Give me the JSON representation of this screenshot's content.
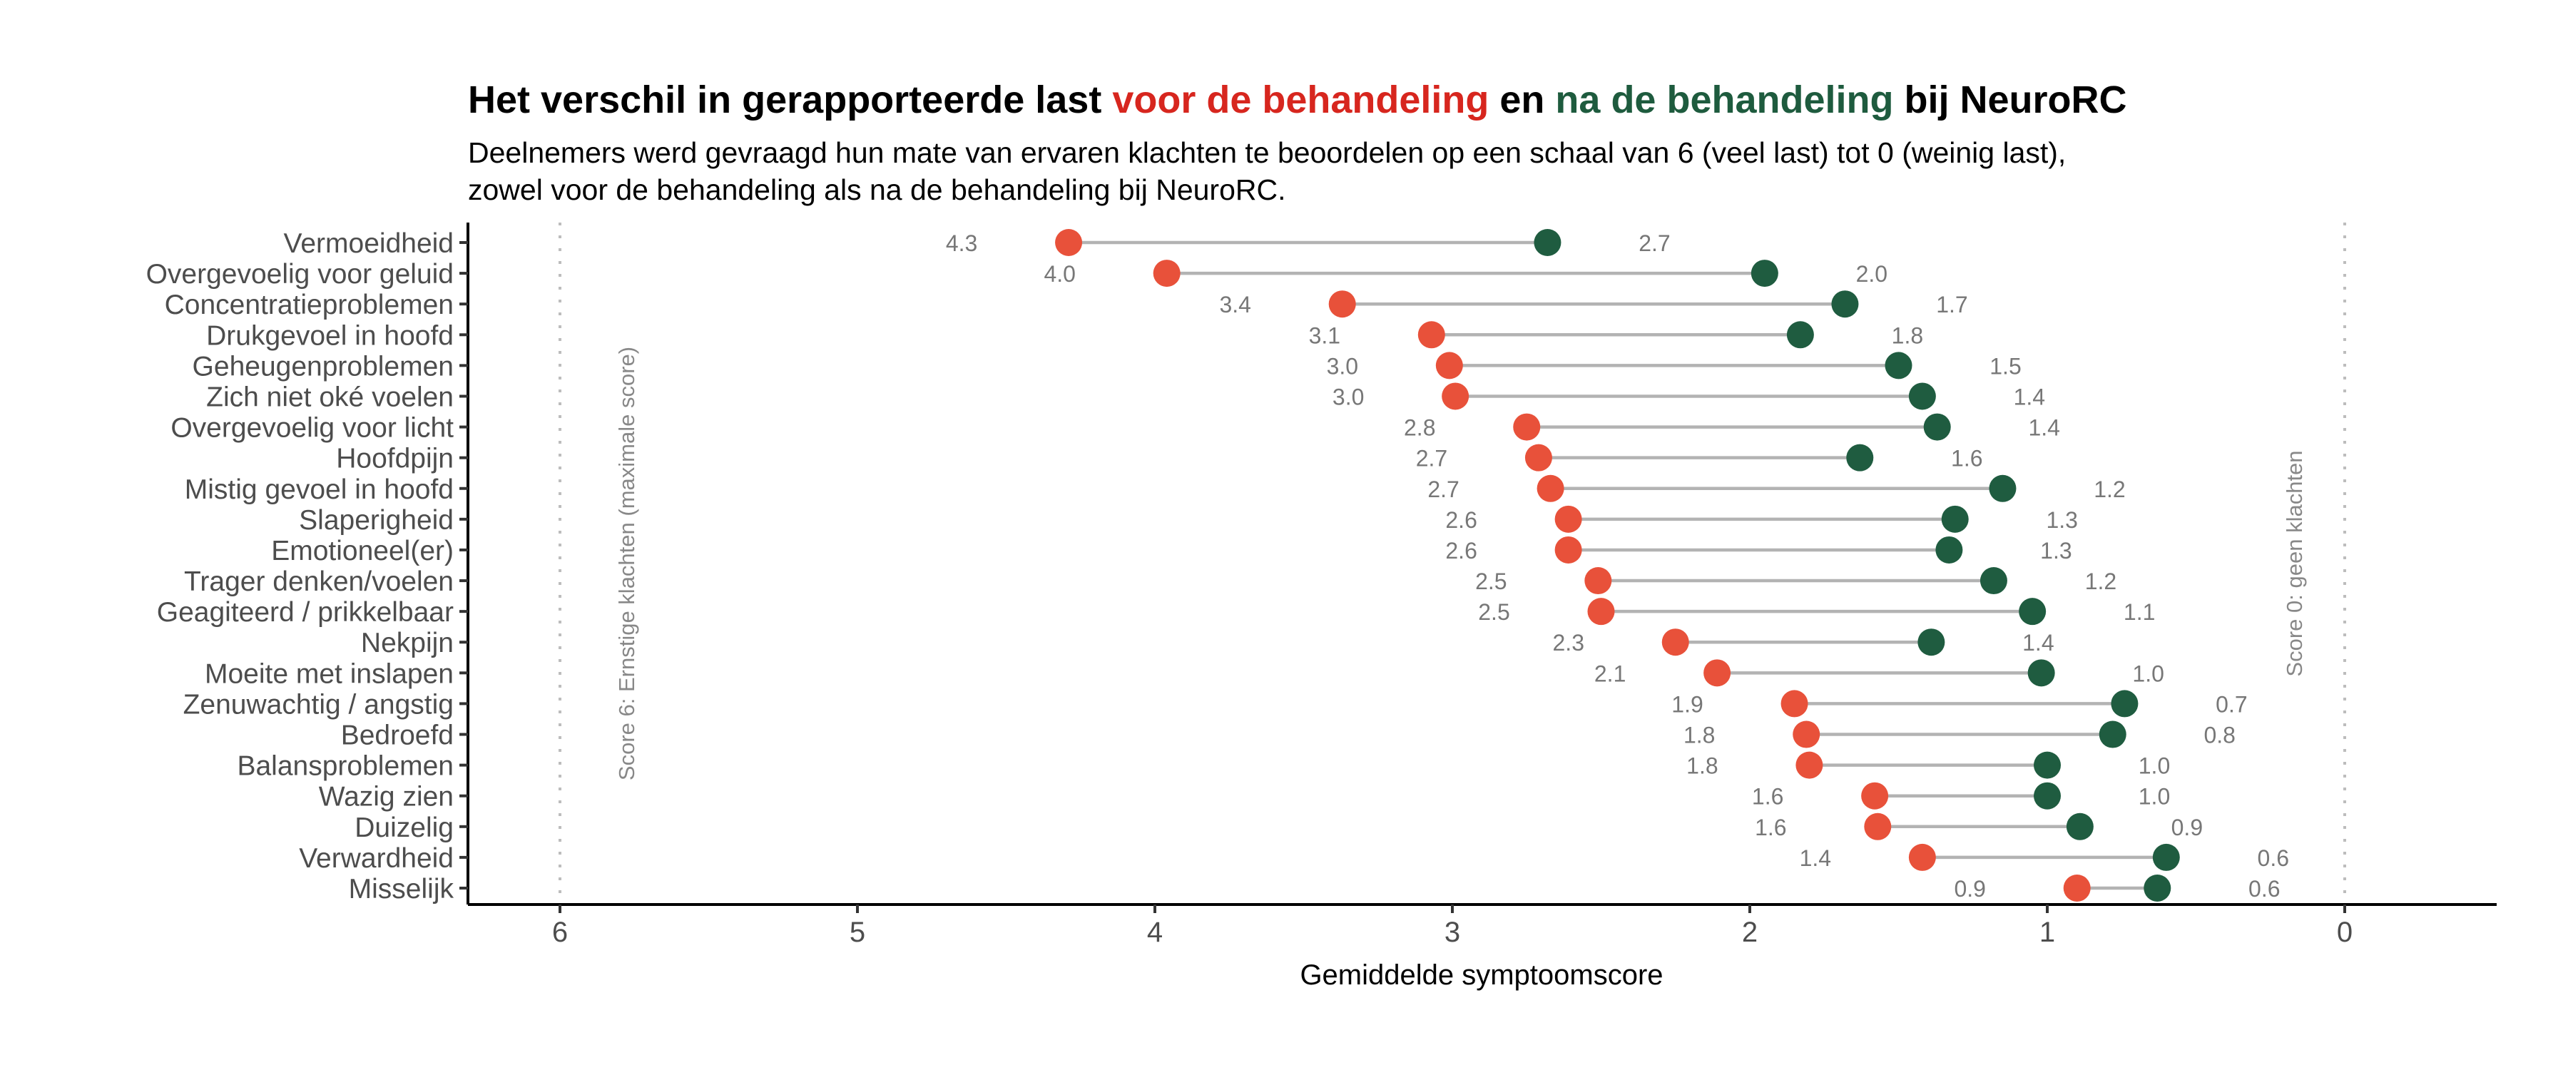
{
  "chart_data": {
    "type": "dumbbell",
    "title_parts": [
      "Het verschil in gerapporteerde last ",
      "voor de behandeling",
      " en ",
      "na de behandeling",
      " bij NeuroRC"
    ],
    "subtitle_lines": [
      "Deelnemers werd gevraagd hun mate van ervaren klachten te beoordelen op een schaal van 6 (veel last) tot 0 (weinig last),",
      "zowel voor de behandeling als na de behandeling bij NeuroRC."
    ],
    "xlabel": "Gemiddelde symptoomscore",
    "xlim": [
      6.31,
      -0.5
    ],
    "x_reversed": true,
    "xticks": [
      6,
      5,
      4,
      3,
      2,
      1,
      0
    ],
    "xtick_labels": [
      "6",
      "5",
      "4",
      "3",
      "2",
      "1",
      "0"
    ],
    "reference_lines": [
      {
        "x": 6,
        "label": "Score 6: Ernstige klachten (maximale score)"
      },
      {
        "x": 0,
        "label": "Score 0: geen klachten"
      }
    ],
    "colors": {
      "before": "#E8513A",
      "after": "#1F5C40",
      "title_before": "#D7261E",
      "title_after": "#1E5B3E",
      "segment": "#B3B3B3"
    },
    "categories": [
      "Vermoeidheid",
      "Overgevoelig voor geluid",
      "Concentratieproblemen",
      "Drukgevoel in hoofd",
      "Geheugenproblemen",
      "Zich niet oké voelen",
      "Overgevoelig voor licht",
      "Hoofdpijn",
      "Mistig gevoel in hoofd",
      "Slaperigheid",
      "Emotioneel(er)",
      "Trager denken/voelen",
      "Geagiteerd / prikkelbaar",
      "Nekpijn",
      "Moeite met inslapen",
      "Zenuwachtig / angstig",
      "Bedroefd",
      "Balansproblemen",
      "Wazig zien",
      "Duizelig",
      "Verwardheid",
      "Misselijk"
    ],
    "series": [
      {
        "name": "voor de behandeling",
        "values": [
          4.29,
          3.96,
          3.37,
          3.07,
          3.01,
          2.99,
          2.75,
          2.71,
          2.67,
          2.61,
          2.61,
          2.51,
          2.5,
          2.25,
          2.11,
          1.85,
          1.81,
          1.8,
          1.58,
          1.57,
          1.42,
          0.9
        ],
        "labels": [
          "4.3",
          "4.0",
          "3.4",
          "3.1",
          "3.0",
          "3.0",
          "2.8",
          "2.7",
          "2.7",
          "2.6",
          "2.6",
          "2.5",
          "2.5",
          "2.3",
          "2.1",
          "1.9",
          "1.8",
          "1.8",
          "1.6",
          "1.6",
          "1.4",
          "0.9"
        ]
      },
      {
        "name": "na de behandeling",
        "values": [
          2.68,
          1.95,
          1.68,
          1.83,
          1.5,
          1.42,
          1.37,
          1.63,
          1.15,
          1.31,
          1.33,
          1.18,
          1.05,
          1.39,
          1.02,
          0.74,
          0.78,
          1.0,
          1.0,
          0.89,
          0.6,
          0.63
        ],
        "labels": [
          "2.7",
          "2.0",
          "1.7",
          "1.8",
          "1.5",
          "1.4",
          "1.4",
          "1.6",
          "1.2",
          "1.3",
          "1.3",
          "1.2",
          "1.1",
          "1.4",
          "1.0",
          "0.7",
          "0.8",
          "1.0",
          "1.0",
          "0.9",
          "0.6",
          "0.6"
        ]
      }
    ]
  }
}
